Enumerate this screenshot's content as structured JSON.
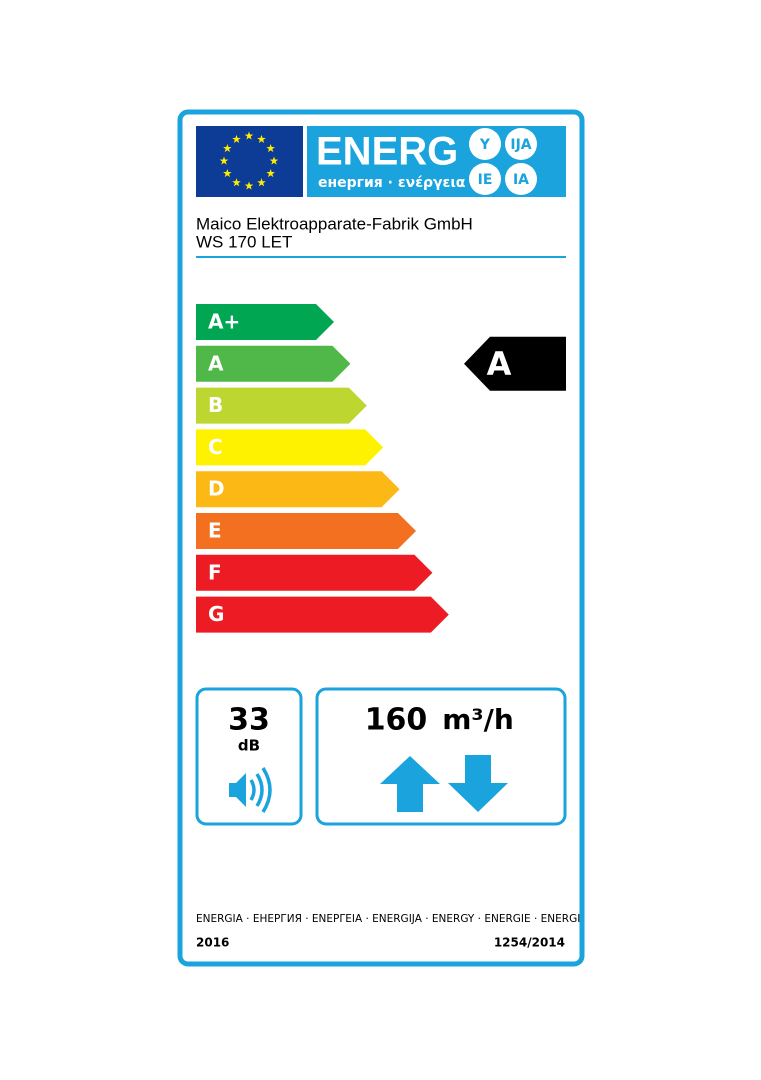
{
  "header": {
    "logo_word": "ENERG",
    "logo_subtitle": "енергия · ενέργεια",
    "languages": [
      "Y",
      "IJA",
      "IE",
      "IA"
    ]
  },
  "supplier": "Maico Elektroapparate-Fabrik GmbH",
  "model": "WS 170 LET",
  "classes": [
    "A+",
    "A",
    "B",
    "C",
    "D",
    "E",
    "F",
    "G"
  ],
  "class_colors": [
    "#00a651",
    "#50b848",
    "#bed630",
    "#fff200",
    "#fcb814",
    "#f37021",
    "#ed1c24",
    "#ed1c24"
  ],
  "rating": "A",
  "rating_index": 1,
  "noise": {
    "value": 33,
    "unit": "dB"
  },
  "airflow": {
    "value": 160,
    "unit": "m³/h"
  },
  "footer": {
    "energy": "ENERGIA · ЕНЕРГИЯ · ΕΝΕΡΓΕΙΑ · ENERGIJA · ENERGY · ENERGIE · ENERGI",
    "year": "2016",
    "regulation": "1254/2014"
  }
}
